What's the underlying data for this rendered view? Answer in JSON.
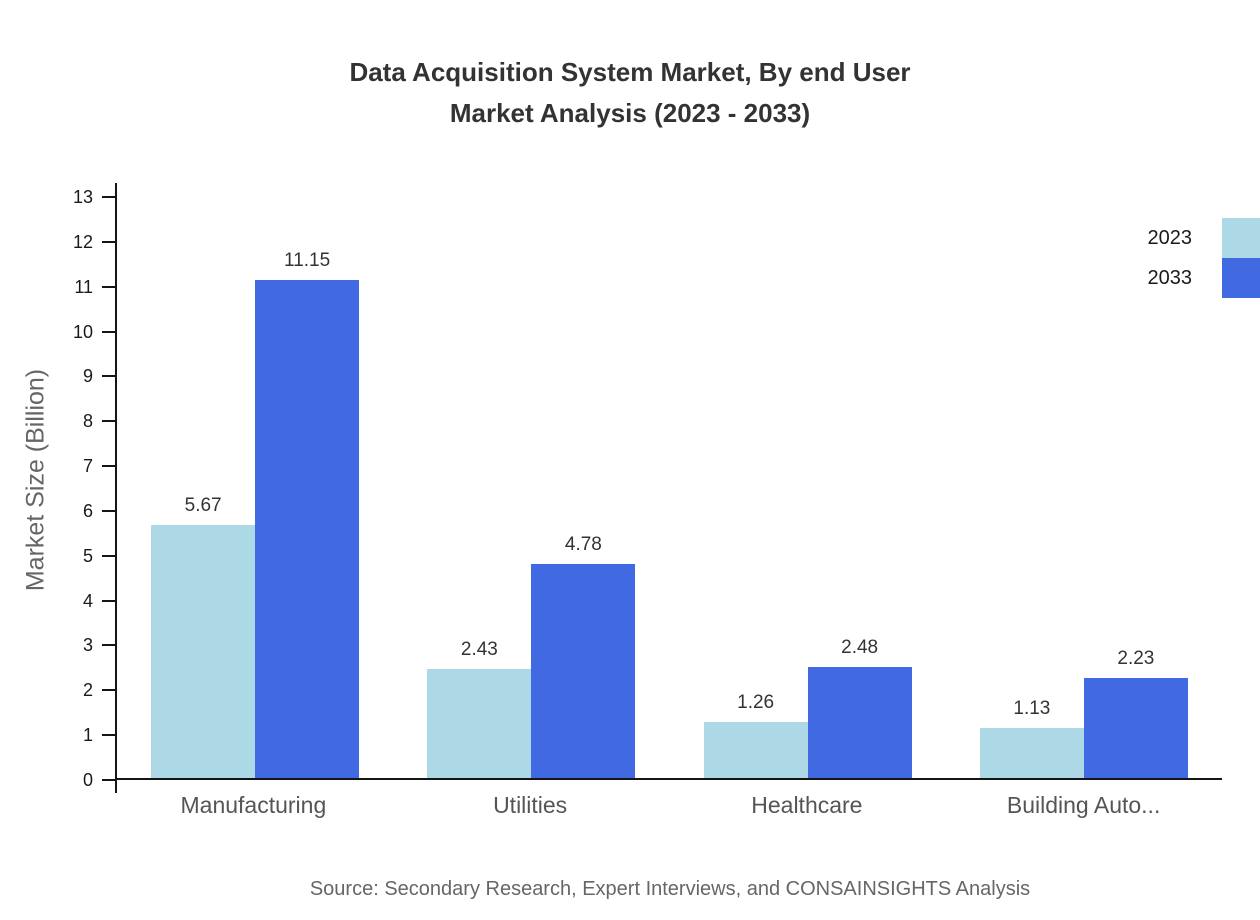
{
  "title": {
    "line1": "Data Acquisition System Market, By end User",
    "line2": "Market Analysis (2023 - 2033)"
  },
  "source": "Source: Secondary Research, Expert Interviews, and CONSAINSIGHTS Analysis",
  "chart_data": {
    "type": "bar",
    "title": "Data Acquisition System Market, By end User Market Analysis (2023 - 2033)",
    "categories": [
      "Manufacturing",
      "Utilities",
      "Healthcare",
      "Building Auto..."
    ],
    "series": [
      {
        "name": "2023",
        "color": "#add8e6",
        "values": [
          5.67,
          2.43,
          1.26,
          1.13
        ]
      },
      {
        "name": "2033",
        "color": "#4169e1",
        "values": [
          11.15,
          4.78,
          2.48,
          2.23
        ]
      }
    ],
    "xlabel": "",
    "ylabel": "Market Size (Billion)",
    "ylim": [
      0,
      13
    ],
    "yticks": [
      0,
      1,
      2,
      3,
      4,
      5,
      6,
      7,
      8,
      9,
      10,
      11,
      12,
      13
    ],
    "grid": false,
    "legend_position": "top-right"
  }
}
